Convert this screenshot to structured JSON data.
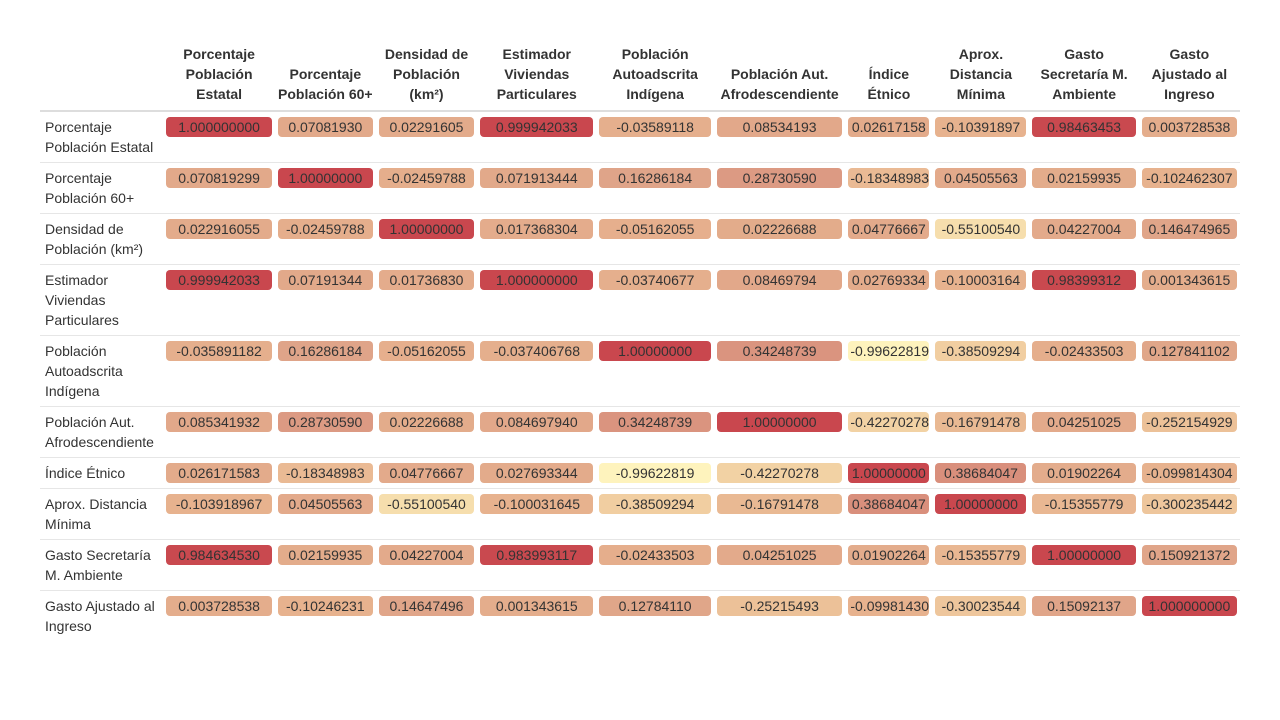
{
  "chart_data": {
    "type": "heatmap",
    "columns": [
      "Porcentaje Población Estatal",
      "Porcentaje Población 60+",
      "Densidad de Población (km²)",
      "Estimador Viviendas Particulares",
      "Población Autoadscrita Indígena",
      "Población Aut. Afrodescendiente",
      "Índice Étnico",
      "Aprox. Distancia Mínima",
      "Gasto Secretaría M. Ambiente",
      "Gasto Ajustado al Ingreso"
    ],
    "rows": [
      "Porcentaje Población Estatal",
      "Porcentaje Población 60+",
      "Densidad de Población (km²)",
      "Estimador Viviendas Particulares",
      "Población Autoadscrita Indígena",
      "Población Aut. Afrodescendiente",
      "Índice Étnico",
      "Aprox. Distancia Mínima",
      "Gasto Secretaría M. Ambiente",
      "Gasto Ajustado al Ingreso"
    ],
    "values": [
      [
        "1.000000000",
        "0.07081930",
        "0.02291605",
        "0.999942033",
        "-0.03589118",
        "0.08534193",
        "0.02617158",
        "-0.10391897",
        "0.98463453",
        "0.003728538"
      ],
      [
        "0.070819299",
        "1.00000000",
        "-0.02459788",
        "0.071913444",
        "0.16286184",
        "0.28730590",
        "-0.18348983",
        "0.04505563",
        "0.02159935",
        "-0.102462307"
      ],
      [
        "0.022916055",
        "-0.02459788",
        "1.00000000",
        "0.017368304",
        "-0.05162055",
        "0.02226688",
        "0.04776667",
        "-0.55100540",
        "0.04227004",
        "0.146474965"
      ],
      [
        "0.999942033",
        "0.07191344",
        "0.01736830",
        "1.000000000",
        "-0.03740677",
        "0.08469794",
        "0.02769334",
        "-0.10003164",
        "0.98399312",
        "0.001343615"
      ],
      [
        "-0.035891182",
        "0.16286184",
        "-0.05162055",
        "-0.037406768",
        "1.00000000",
        "0.34248739",
        "-0.99622819",
        "-0.38509294",
        "-0.02433503",
        "0.127841102"
      ],
      [
        "0.085341932",
        "0.28730590",
        "0.02226688",
        "0.084697940",
        "0.34248739",
        "1.00000000",
        "-0.42270278",
        "-0.16791478",
        "0.04251025",
        "-0.252154929"
      ],
      [
        "0.026171583",
        "-0.18348983",
        "0.04776667",
        "0.027693344",
        "-0.99622819",
        "-0.42270278",
        "1.00000000",
        "0.38684047",
        "0.01902264",
        "-0.099814304"
      ],
      [
        "-0.103918967",
        "0.04505563",
        "-0.55100540",
        "-0.100031645",
        "-0.38509294",
        "-0.16791478",
        "0.38684047",
        "1.00000000",
        "-0.15355779",
        "-0.300235442"
      ],
      [
        "0.984634530",
        "0.02159935",
        "0.04227004",
        "0.983993117",
        "-0.02433503",
        "0.04251025",
        "0.01902264",
        "-0.15355779",
        "1.00000000",
        "0.150921372"
      ],
      [
        "0.003728538",
        "-0.10246231",
        "0.14647496",
        "0.001343615",
        "0.12784110",
        "-0.25215493",
        "-0.09981430",
        "-0.30023544",
        "0.15092137",
        "1.000000000"
      ]
    ],
    "color_scale": {
      "low": "#fef3bd",
      "high": "#c9474e"
    }
  }
}
